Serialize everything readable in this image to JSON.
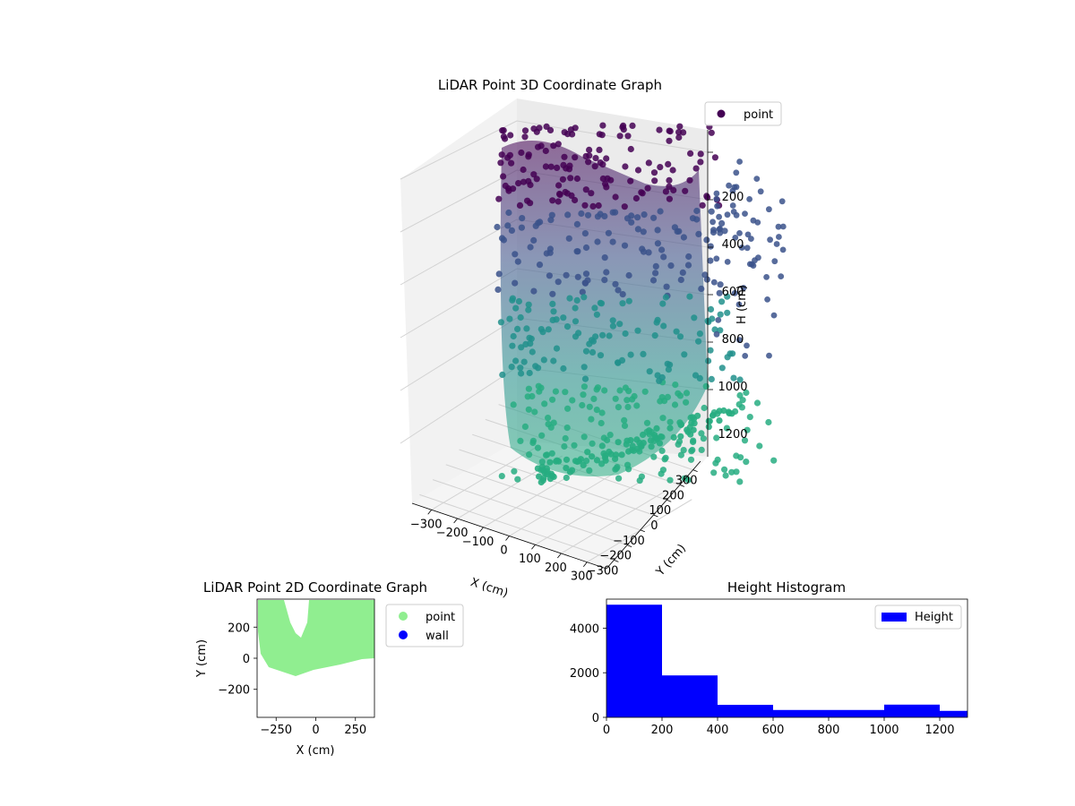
{
  "chart_data": [
    {
      "type": "scatter3d",
      "title": "LiDAR Point 3D Coordinate Graph",
      "xlabel": "X (cm)",
      "ylabel": "Y (cm)",
      "zlabel": "H (cm)",
      "x_ticks": [
        "−300",
        "−200",
        "−100",
        "0",
        "100",
        "200",
        "300"
      ],
      "y_ticks": [
        "−300",
        "−200",
        "−100",
        "0",
        "100",
        "200",
        "300"
      ],
      "z_ticks": [
        "200",
        "400",
        "600",
        "800",
        "1000",
        "1200"
      ],
      "z_inverted": true,
      "legend": [
        "point"
      ],
      "legend_position": "top-right",
      "colormap": "viridis",
      "colormap_stops": [
        "#440154",
        "#3b528b",
        "#21918c",
        "#27ad81",
        "#5ec962",
        "#fde725"
      ]
    },
    {
      "type": "scatter",
      "title": "LiDAR Point 2D Coordinate Graph",
      "xlabel": "X (cm)",
      "ylabel": "Y (cm)",
      "xlim": [
        -370,
        370
      ],
      "ylim": [
        -380,
        380
      ],
      "x_ticks": [
        -250,
        0,
        250
      ],
      "y_ticks": [
        -200,
        0,
        200
      ],
      "series": [
        {
          "name": "point",
          "color": "#90ee90"
        },
        {
          "name": "wall",
          "color": "#0000ff"
        }
      ],
      "legend_position": "outside-right"
    },
    {
      "type": "bar",
      "title": "Height Histogram",
      "xlim": [
        0,
        1300
      ],
      "ylim": [
        0,
        5300
      ],
      "x_ticks": [
        0,
        200,
        400,
        600,
        800,
        1000,
        1200
      ],
      "y_ticks": [
        0,
        2000,
        4000
      ],
      "bins": [
        {
          "start": 0,
          "end": 200,
          "value": 5050
        },
        {
          "start": 200,
          "end": 400,
          "value": 1880
        },
        {
          "start": 400,
          "end": 600,
          "value": 560
        },
        {
          "start": 600,
          "end": 800,
          "value": 330
        },
        {
          "start": 800,
          "end": 1000,
          "value": 330
        },
        {
          "start": 1000,
          "end": 1200,
          "value": 570
        },
        {
          "start": 1200,
          "end": 1300,
          "value": 290
        }
      ],
      "series": [
        {
          "name": "Height",
          "color": "#0000ff"
        }
      ],
      "legend_position": "top-right"
    }
  ]
}
